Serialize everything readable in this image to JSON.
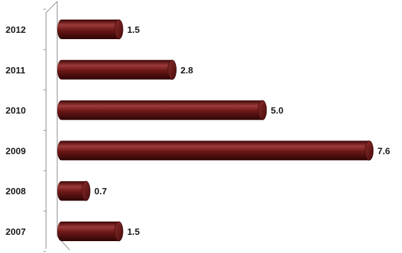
{
  "chart_data": {
    "type": "bar",
    "orientation": "horizontal",
    "style": "3d-cylinder",
    "categories": [
      "2012",
      "2011",
      "2010",
      "2009",
      "2008",
      "2007"
    ],
    "values": [
      1.5,
      2.8,
      5.0,
      7.6,
      0.7,
      1.5
    ],
    "data_labels": [
      "1.5",
      "2.8",
      "5.0",
      "7.6",
      "0.7",
      "1.5"
    ],
    "title": "",
    "xlabel": "",
    "ylabel": "",
    "xlim": [
      0,
      8
    ],
    "grid": false,
    "legend": "none",
    "colors": {
      "bar": "#6b1717",
      "bar_light": "#9c3a3a",
      "bar_dark": "#3d0707",
      "axis": "#9a9a9a"
    }
  }
}
